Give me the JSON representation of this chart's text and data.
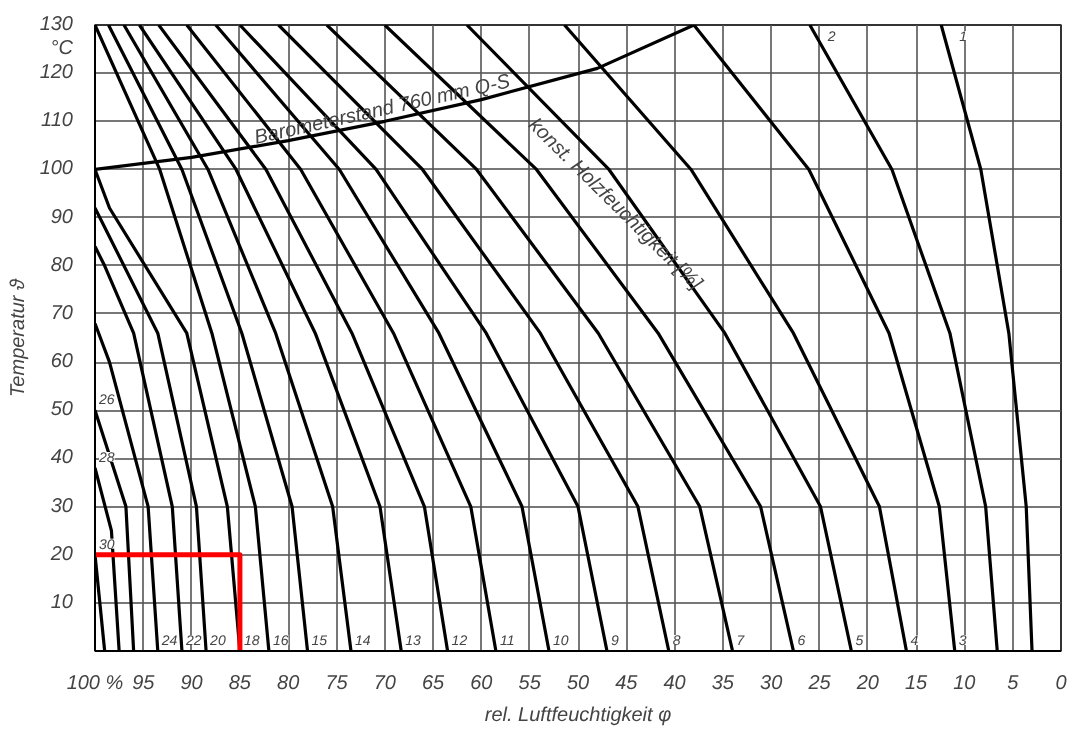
{
  "chart_data": {
    "type": "line",
    "xlabel": "rel. Luftfeuchtigkeit φ",
    "ylabel": "Temperatur ϑ",
    "xlim": [
      100,
      0
    ],
    "ylim": [
      0,
      130
    ],
    "xticks": [
      {
        "value": 100,
        "label": "100 %"
      },
      95,
      90,
      85,
      80,
      75,
      70,
      65,
      60,
      55,
      50,
      45,
      40,
      35,
      30,
      25,
      20,
      15,
      10,
      5,
      0
    ],
    "yticks": [
      {
        "value": 0,
        "label": null
      },
      10,
      20,
      30,
      40,
      50,
      60,
      70,
      80,
      90,
      100,
      110,
      120,
      130
    ],
    "grid": true,
    "annotations": [
      {
        "text": "Barometerstand 760 mm Q-S",
        "x": 70,
        "y": 110
      },
      "konst. Holzfeuchtigkeit [%]",
      "°C"
    ],
    "series": [
      {
        "name": "1",
        "color": "#000000",
        "x": [
          3,
          3.6,
          5.4,
          8.3,
          12.4
        ],
        "values": [
          0,
          30,
          66,
          100,
          130
        ]
      },
      {
        "name": "2",
        "color": "#000000",
        "x": [
          6.6,
          7.8,
          11.5,
          17.5,
          26
        ],
        "values": [
          0,
          30,
          66,
          100,
          130
        ]
      },
      {
        "name": "3",
        "color": "#000000",
        "x": [
          11,
          12.6,
          17.8,
          26.1,
          38
        ],
        "values": [
          0,
          30,
          66,
          100,
          130
        ]
      },
      {
        "name": "4",
        "color": "#000000",
        "x": [
          16,
          18.8,
          27.7,
          38.3,
          51.4
        ],
        "values": [
          0,
          30,
          66,
          100,
          130
        ]
      },
      {
        "name": "5",
        "color": "#000000",
        "x": [
          21.7,
          24.9,
          34.8,
          46.8,
          61.5
        ],
        "values": [
          0,
          30,
          66,
          100,
          130
        ]
      },
      {
        "name": "6",
        "color": "#000000",
        "x": [
          27.7,
          31.1,
          41.7,
          54.3,
          70
        ],
        "values": [
          0,
          30,
          66,
          100,
          130
        ]
      },
      {
        "name": "7",
        "color": "#000000",
        "x": [
          34,
          37.4,
          47.9,
          60.5,
          76
        ],
        "values": [
          0,
          30,
          66,
          100,
          130
        ]
      },
      {
        "name": "8",
        "color": "#000000",
        "x": [
          40.6,
          43.8,
          53.9,
          66.1,
          81
        ],
        "values": [
          0,
          30,
          66,
          100,
          130
        ]
      },
      {
        "name": "9",
        "color": "#000000",
        "x": [
          47,
          50,
          59.5,
          70.9,
          85
        ],
        "values": [
          0,
          30,
          66,
          100,
          130
        ]
      },
      {
        "name": "10",
        "color": "#000000",
        "x": [
          53,
          55.8,
          64.4,
          74.7,
          87.5
        ],
        "values": [
          0,
          30,
          66,
          100,
          130
        ]
      },
      {
        "name": "11",
        "color": "#000000",
        "x": [
          58.5,
          61.1,
          69.1,
          78.7,
          90.5
        ],
        "values": [
          0,
          30,
          66,
          100,
          130
        ]
      },
      {
        "name": "12",
        "color": "#000000",
        "x": [
          63.5,
          65.9,
          73.4,
          82.3,
          93.4
        ],
        "values": [
          0,
          30,
          66,
          100,
          130
        ]
      },
      {
        "name": "13",
        "color": "#000000",
        "x": [
          68.3,
          70.5,
          77.2,
          85.4,
          95.4
        ],
        "values": [
          0,
          30,
          66,
          100,
          130
        ]
      },
      {
        "name": "14",
        "color": "#000000",
        "x": [
          73.5,
          75.4,
          81.3,
          88.3,
          97
        ],
        "values": [
          0,
          30,
          66,
          100,
          130
        ]
      },
      {
        "name": "15",
        "color": "#000000",
        "x": [
          78,
          79.6,
          84.8,
          91,
          98.6
        ],
        "values": [
          0,
          30,
          66,
          100,
          130
        ]
      },
      {
        "name": "16",
        "color": "#000000",
        "x": [
          82,
          83.4,
          87.9,
          93.3,
          100
        ],
        "values": [
          0,
          30,
          66,
          100,
          130
        ]
      },
      {
        "name": "18",
        "color": "#000000",
        "x": [
          85,
          86.3,
          90.5,
          98.5,
          100
        ],
        "values": [
          0,
          30,
          66,
          92,
          100
        ]
      },
      {
        "name": "20",
        "color": "#000000",
        "x": [
          88.5,
          89.5,
          93.5,
          99,
          100
        ],
        "values": [
          0,
          30,
          66,
          88,
          92
        ]
      },
      {
        "name": "22",
        "color": "#000000",
        "x": [
          91,
          92,
          96,
          99,
          100
        ],
        "values": [
          0,
          30,
          66,
          80,
          84
        ]
      },
      {
        "name": "24",
        "color": "#000000",
        "x": [
          93.5,
          94.5,
          98.5,
          100
        ],
        "values": [
          0,
          30,
          60,
          68
        ]
      },
      {
        "name": "26",
        "color": "#000000",
        "x": [
          96,
          96.8,
          100
        ],
        "values": [
          0,
          30,
          50
        ]
      },
      {
        "name": "28",
        "color": "#000000",
        "x": [
          97.5,
          98.3,
          100
        ],
        "values": [
          0,
          25,
          38
        ]
      },
      {
        "name": "30",
        "color": "#000000",
        "x": [
          99,
          100
        ],
        "values": [
          0,
          20
        ]
      },
      {
        "color": "#000000",
        "x": [
          100,
          90,
          80,
          70,
          60,
          48,
          38
        ],
        "values": [
          100,
          102.5,
          106,
          110,
          114.5,
          121,
          130
        ]
      },
      {
        "color": "#ff0000",
        "x": [
          100,
          85,
          85
        ],
        "values": [
          20,
          20,
          0
        ]
      }
    ]
  }
}
